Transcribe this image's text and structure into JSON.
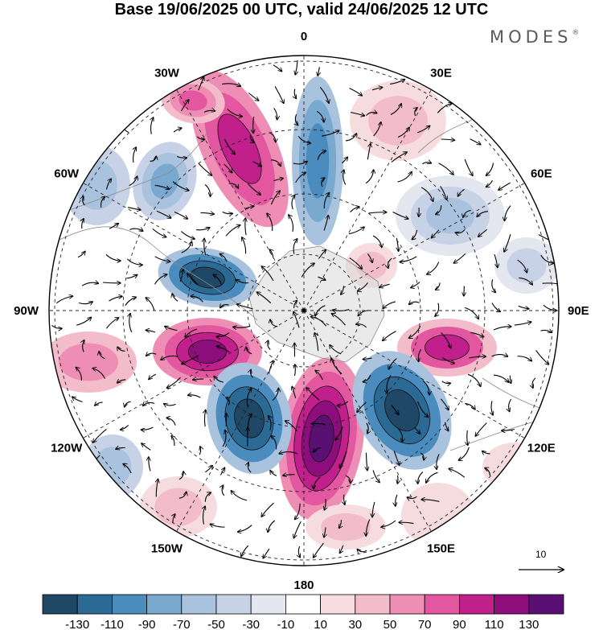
{
  "title": "Base 19/06/2025 00 UTC, valid 24/06/2025 12 UTC",
  "brand": {
    "text": "MODES",
    "mark": "®"
  },
  "map": {
    "projection": "south-polar-stereographic",
    "longitude_labels": [
      "0",
      "30E",
      "60E",
      "90E",
      "120E",
      "150E",
      "180",
      "150W",
      "120W",
      "90W",
      "60W",
      "30W"
    ],
    "field": "height-anomaly-shading",
    "vectors": "wind-vectors",
    "reference_vector_label": "10"
  },
  "colorbar": {
    "tick_labels": [
      "-130",
      "-110",
      "-90",
      "-70",
      "-50",
      "-30",
      "-10",
      "10",
      "30",
      "50",
      "70",
      "90",
      "110",
      "130"
    ],
    "colors": [
      "#1f4766",
      "#2c6a96",
      "#4a8cbd",
      "#79a9cf",
      "#a9c2de",
      "#c8d2e6",
      "#e4e6f0",
      "#ffffff",
      "#f6dcdf",
      "#f2bccb",
      "#ee8eb4",
      "#e2579f",
      "#c01f8c",
      "#8e0d7c",
      "#5a1072"
    ]
  }
}
